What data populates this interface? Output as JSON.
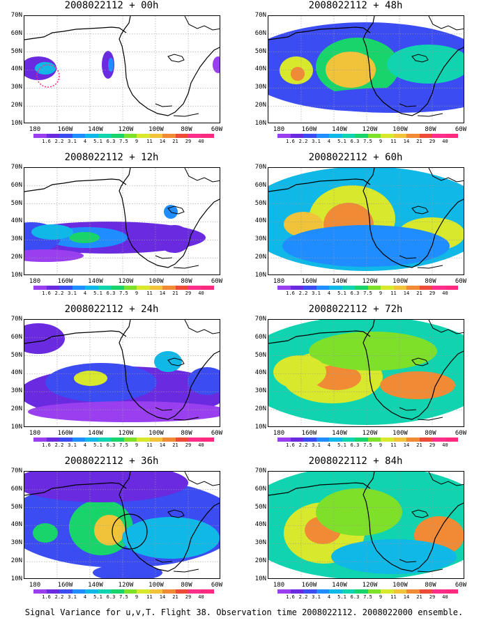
{
  "panels": [
    {
      "title": "2008022112 + 00h",
      "level": 0
    },
    {
      "title": "2008022112 + 48h",
      "level": 4
    },
    {
      "title": "2008022112 + 12h",
      "level": 1
    },
    {
      "title": "2008022112 + 60h",
      "level": 5
    },
    {
      "title": "2008022112 + 24h",
      "level": 2
    },
    {
      "title": "2008022112 + 72h",
      "level": 6
    },
    {
      "title": "2008022112 + 36h",
      "level": 3
    },
    {
      "title": "2008022112 + 84h",
      "level": 7
    }
  ],
  "lat_labels": [
    "70N",
    "60N",
    "50N",
    "40N",
    "30N",
    "20N",
    "10N"
  ],
  "lon_labels": [
    "180",
    "160W",
    "140W",
    "120W",
    "100W",
    "80W",
    "60W"
  ],
  "colorbar": {
    "labels": [
      "1.6",
      "2.2",
      "3.1",
      "4",
      "5.1",
      "6.3",
      "7.5",
      "9",
      "11",
      "14",
      "21",
      "29",
      "40"
    ],
    "colors": [
      "#9a3ff0",
      "#6a2ae0",
      "#3b4cf2",
      "#1f8cff",
      "#0fb8e6",
      "#10d3b0",
      "#17d56a",
      "#7fe02a",
      "#d8e82c",
      "#f0c33a",
      "#f08a35",
      "#ee4a3a",
      "#ff2e8a",
      "#ff2a7f"
    ]
  },
  "footer": "Signal Variance for u,v,T. Flight 38. Observation time 2008022112. 2008022000 ensemble."
}
